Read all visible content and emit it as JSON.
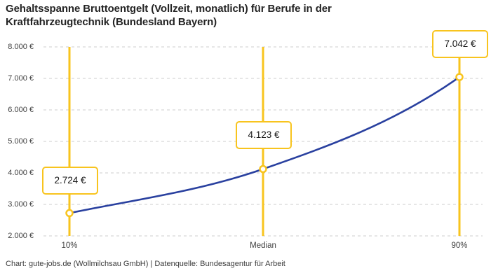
{
  "attribution": "Chart: gute-jobs.de (Wollmilchsau GmbH) | Datenquelle: Bundesagentur für Arbeit",
  "colors": {
    "accent_yellow": "#f8c41e",
    "line_blue": "#29409f",
    "grid": "#cccccc",
    "title_text": "#242424",
    "axis_text": "#3f3f3f",
    "footer_text": "#3b3b3b",
    "background": "#ffffff"
  },
  "chart_data": {
    "type": "line",
    "title": "Gehaltsspanne Bruttoentgelt (Vollzeit, monatlich) für Berufe in der Kraftfahrzeugtechnik (Bundesland Bayern)",
    "x": [
      "10%",
      "Median",
      "90%"
    ],
    "values": [
      2724,
      4123,
      7042
    ],
    "value_labels": [
      "2.724 €",
      "4.123 €",
      "7.042 €"
    ],
    "y_ticks": [
      "8.000 €",
      "7.000 €",
      "6.000 €",
      "5.000 €",
      "4.000 €",
      "3.000 €",
      "2.000 €"
    ],
    "ylim": [
      2000,
      8000
    ],
    "y_tick_step": 1000,
    "xlabel": "",
    "ylabel": "",
    "grid": "horizontal-dashed",
    "legend": "none",
    "marker_style": "yellow-ring-circle",
    "annotation_style": "yellow-bordered-value-boxes-with-vertical-lines"
  }
}
